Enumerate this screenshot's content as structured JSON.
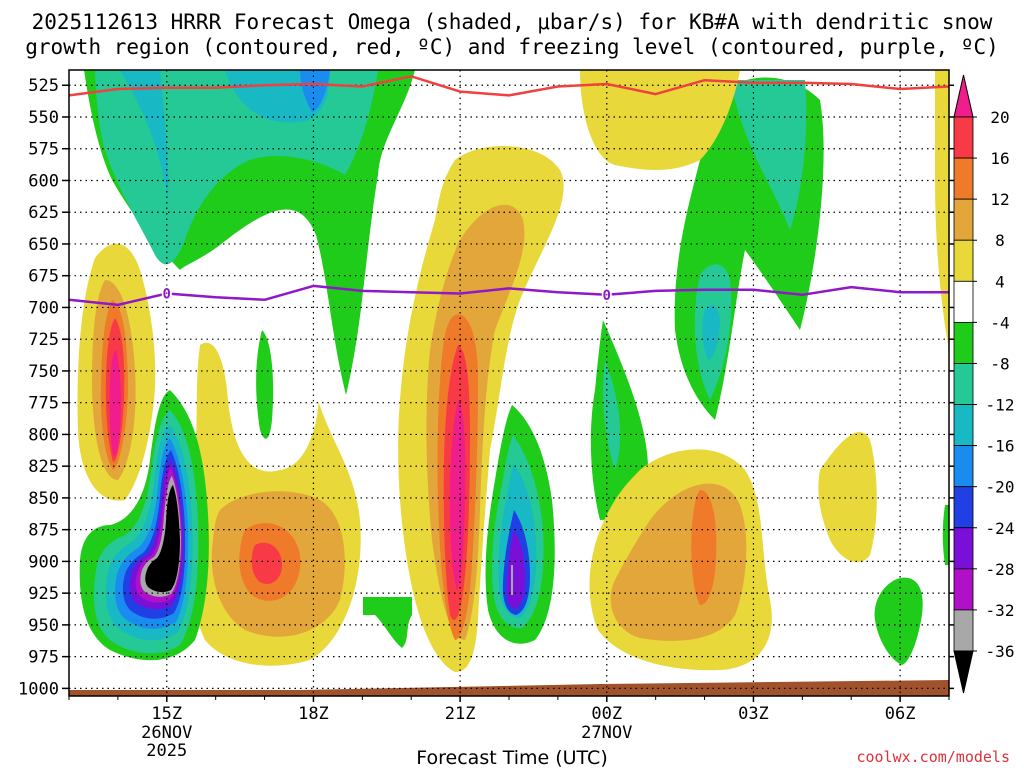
{
  "chart_data": {
    "type": "contour",
    "title_line1": "2025112613 HRRR Forecast Omega (shaded, μbar/s) for KB#A with dendritic snow",
    "title_line2": "growth region (contoured, red, ºC) and freezing level (contoured, purple, ºC)",
    "xlabel": "Forecast Time (UTC)",
    "credit": "coolwx.com/models",
    "y_axis": {
      "direction": "pressure-decreasing-up",
      "ylim": [
        1006,
        513
      ],
      "ticks": [
        "525",
        "550",
        "575",
        "600",
        "625",
        "650",
        "675",
        "700",
        "725",
        "750",
        "775",
        "800",
        "825",
        "850",
        "875",
        "900",
        "925",
        "950",
        "975",
        "1000"
      ]
    },
    "x_axis": {
      "xlim": [
        13.0,
        31.0
      ],
      "ticks": [
        {
          "hour": 15,
          "label": "15Z",
          "sub1": "26NOV",
          "sub2": "2025"
        },
        {
          "hour": 18,
          "label": "18Z",
          "sub1": "",
          "sub2": ""
        },
        {
          "hour": 21,
          "label": "21Z",
          "sub1": "",
          "sub2": ""
        },
        {
          "hour": 24,
          "label": "00Z",
          "sub1": "27NOV",
          "sub2": ""
        },
        {
          "hour": 27,
          "label": "03Z",
          "sub1": "",
          "sub2": ""
        },
        {
          "hour": 30,
          "label": "06Z",
          "sub1": "",
          "sub2": ""
        }
      ]
    },
    "colorbar": {
      "labels": [
        "20",
        "16",
        "12",
        "8",
        "4",
        "-4",
        "-8",
        "-12",
        "-16",
        "-20",
        "-24",
        "-28",
        "-32",
        "-36"
      ],
      "levels": [
        {
          "range": "16-20",
          "color": "#f83a46"
        },
        {
          "range": "12-16",
          "color": "#ef7a2a"
        },
        {
          "range": "8-12",
          "color": "#e3a63a"
        },
        {
          "range": "4-8",
          "color": "#e9d83a"
        },
        {
          "range": "-4-4",
          "color": "#ffffff"
        },
        {
          "range": "-8--4",
          "color": "#1fcc1a"
        },
        {
          "range": "-12--8",
          "color": "#25c995"
        },
        {
          "range": "-16--12",
          "color": "#18b8c4"
        },
        {
          "range": "-20--16",
          "color": "#1a8cf0"
        },
        {
          "range": "-24--20",
          "color": "#2040e6"
        },
        {
          "range": "-28--24",
          "color": "#7a10d8"
        },
        {
          "range": "-32--28",
          "color": "#b010c8"
        },
        {
          "range": "-36--32",
          "color": "#a8a8a8"
        }
      ],
      "top_triangle_color": "#f01e8c",
      "bottom_triangle_color": "#000000"
    },
    "series": [
      {
        "name": "dendritic growth region (-12 ºC) contour",
        "color": "#f04040",
        "x": [
          13.0,
          14.0,
          15.0,
          16.0,
          17.0,
          18.0,
          19.0,
          20.0,
          21.0,
          22.0,
          23.0,
          24.0,
          25.0,
          26.0,
          27.0,
          28.0,
          29.0,
          30.0,
          31.0
        ],
        "y": [
          533,
          528,
          527,
          527,
          525,
          524,
          526,
          518,
          530,
          533,
          526,
          524,
          532,
          521,
          523,
          523,
          524,
          528,
          526
        ]
      },
      {
        "name": "freezing level (0 ºC) contour",
        "color": "#9018c8",
        "label": "0",
        "x": [
          13.0,
          14.0,
          15.0,
          16.0,
          17.0,
          18.0,
          19.0,
          20.0,
          21.0,
          22.0,
          23.0,
          24.0,
          25.0,
          26.0,
          27.0,
          28.0,
          29.0,
          30.0,
          31.0
        ],
        "y": [
          694,
          698,
          689,
          692,
          694,
          683,
          687,
          688,
          689,
          685,
          688,
          690,
          687,
          686,
          686,
          690,
          684,
          688,
          688
        ]
      }
    ],
    "omega_shaded_regions": [
      {
        "time": "15Z",
        "pressure": "850-925",
        "omega_min": -36,
        "note": "strong upward motion core"
      },
      {
        "time": "14Z",
        "pressure": "725-775",
        "omega_max": 20
      },
      {
        "time": "17Z",
        "pressure": "875-900",
        "omega_max": 16
      },
      {
        "time": "21Z",
        "pressure": "750-875",
        "omega_max": 20
      },
      {
        "time": "22Z",
        "pressure": "875-925",
        "omega_min": -28
      },
      {
        "time": "02Z",
        "pressure": "825-875",
        "omega_max": 12
      }
    ],
    "ground_fill_color": "#a0522d"
  }
}
